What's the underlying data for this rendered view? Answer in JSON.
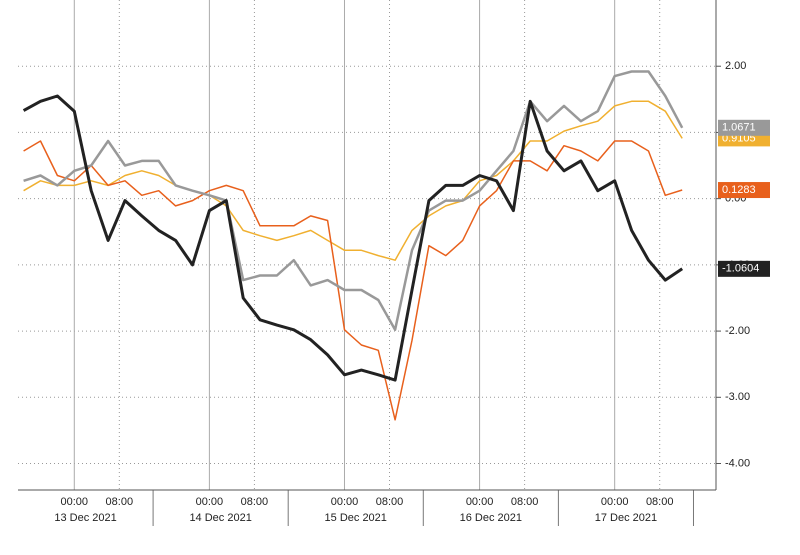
{
  "chart_data": {
    "type": "line",
    "x": [
      "2021-12-12T15:00",
      "2021-12-12T18:00",
      "2021-12-12T21:00",
      "2021-12-13T00:00",
      "2021-12-13T03:00",
      "2021-12-13T06:00",
      "2021-12-13T09:00",
      "2021-12-13T12:00",
      "2021-12-13T15:00",
      "2021-12-13T18:00",
      "2021-12-13T21:00",
      "2021-12-14T00:00",
      "2021-12-14T03:00",
      "2021-12-14T06:00",
      "2021-12-14T09:00",
      "2021-12-14T12:00",
      "2021-12-14T15:00",
      "2021-12-14T18:00",
      "2021-12-14T21:00",
      "2021-12-15T00:00",
      "2021-12-15T03:00",
      "2021-12-15T06:00",
      "2021-12-15T09:00",
      "2021-12-15T12:00",
      "2021-12-15T15:00",
      "2021-12-15T18:00",
      "2021-12-15T21:00",
      "2021-12-16T00:00",
      "2021-12-16T03:00",
      "2021-12-16T06:00",
      "2021-12-16T09:00",
      "2021-12-16T12:00",
      "2021-12-16T15:00",
      "2021-12-16T18:00",
      "2021-12-16T21:00",
      "2021-12-17T00:00",
      "2021-12-17T03:00",
      "2021-12-17T06:00",
      "2021-12-17T09:00",
      "2021-12-17T12:00"
    ],
    "series": [
      {
        "color": "#f0b030",
        "last_label": "0.9105",
        "values": [
          0.12,
          0.27,
          0.2,
          0.2,
          0.27,
          0.2,
          0.35,
          0.42,
          0.35,
          0.2,
          0.12,
          0.05,
          -0.11,
          -0.48,
          -0.56,
          -0.63,
          -0.56,
          -0.48,
          -0.63,
          -0.78,
          -0.78,
          -0.86,
          -0.93,
          -0.48,
          -0.26,
          -0.11,
          -0.03,
          0.27,
          0.35,
          0.57,
          0.87,
          0.87,
          1.02,
          1.1,
          1.17,
          1.4,
          1.47,
          1.47,
          1.32,
          0.91
        ]
      },
      {
        "color": "#e8601c",
        "last_label": "0.1283",
        "values": [
          0.72,
          0.87,
          0.35,
          0.27,
          0.5,
          0.2,
          0.27,
          0.05,
          0.12,
          -0.11,
          -0.03,
          0.12,
          0.2,
          0.12,
          -0.41,
          -0.41,
          -0.41,
          -0.26,
          -0.33,
          -1.98,
          -2.21,
          -2.29,
          -3.34,
          -2.14,
          -0.71,
          -0.86,
          -0.63,
          -0.11,
          0.12,
          0.57,
          0.57,
          0.42,
          0.8,
          0.72,
          0.57,
          0.87,
          0.87,
          0.72,
          0.05,
          0.13
        ]
      },
      {
        "color": "#999999",
        "last_label": "1.0671",
        "values": [
          0.27,
          0.35,
          0.2,
          0.42,
          0.5,
          0.87,
          0.5,
          0.57,
          0.57,
          0.2,
          0.12,
          0.05,
          -0.03,
          -1.23,
          -1.16,
          -1.16,
          -0.93,
          -1.31,
          -1.23,
          -1.38,
          -1.38,
          -1.53,
          -1.98,
          -0.78,
          -0.18,
          -0.03,
          -0.03,
          0.12,
          0.42,
          0.72,
          1.47,
          1.17,
          1.4,
          1.17,
          1.32,
          1.85,
          1.92,
          1.92,
          1.55,
          1.07
        ]
      },
      {
        "color": "#222222",
        "last_label": "-1.0604",
        "values": [
          1.33,
          1.47,
          1.55,
          1.32,
          0.12,
          -0.63,
          -0.03,
          -0.26,
          -0.48,
          -0.63,
          -1.0,
          -0.18,
          -0.03,
          -1.5,
          -1.83,
          -1.91,
          -1.98,
          -2.13,
          -2.36,
          -2.66,
          -2.59,
          -2.66,
          -2.74,
          -1.38,
          -0.03,
          0.2,
          0.2,
          0.35,
          0.27,
          -0.18,
          1.47,
          0.72,
          0.42,
          0.57,
          0.12,
          0.27,
          -0.48,
          -0.93,
          -1.23,
          -1.06
        ]
      }
    ],
    "xlim": [
      "2021-12-12T14:00",
      "2021-12-17T18:00"
    ],
    "xticks": [
      {
        "value": "2021-12-13T00:00",
        "label": "00:00"
      },
      {
        "value": "2021-12-13T08:00",
        "label": "08:00"
      },
      {
        "value": "2021-12-14T00:00",
        "label": "00:00"
      },
      {
        "value": "2021-12-14T08:00",
        "label": "08:00"
      },
      {
        "value": "2021-12-15T00:00",
        "label": "00:00"
      },
      {
        "value": "2021-12-15T08:00",
        "label": "08:00"
      },
      {
        "value": "2021-12-16T00:00",
        "label": "00:00"
      },
      {
        "value": "2021-12-16T08:00",
        "label": "08:00"
      },
      {
        "value": "2021-12-17T00:00",
        "label": "00:00"
      },
      {
        "value": "2021-12-17T08:00",
        "label": "08:00"
      }
    ],
    "date_ticks": [
      {
        "value": "2021-12-13T00:00",
        "label": "13 Dec 2021"
      },
      {
        "value": "2021-12-14T00:00",
        "label": "14 Dec 2021"
      },
      {
        "value": "2021-12-15T00:00",
        "label": "15 Dec 2021"
      },
      {
        "value": "2021-12-16T00:00",
        "label": "16 Dec 2021"
      },
      {
        "value": "2021-12-17T00:00",
        "label": "17 Dec 2021"
      }
    ],
    "ylim": [
      -4.4,
      3.0
    ],
    "yticks": [
      {
        "value": 2,
        "label": "2.00"
      },
      {
        "value": 1,
        "label": "1.00"
      },
      {
        "value": 0,
        "label": "0.00"
      },
      {
        "value": -1,
        "label": "-1.00"
      },
      {
        "value": -2,
        "label": "-2.00"
      },
      {
        "value": -3,
        "label": "-3.00"
      },
      {
        "value": -4,
        "label": "-4.00"
      }
    ],
    "grid": true
  }
}
